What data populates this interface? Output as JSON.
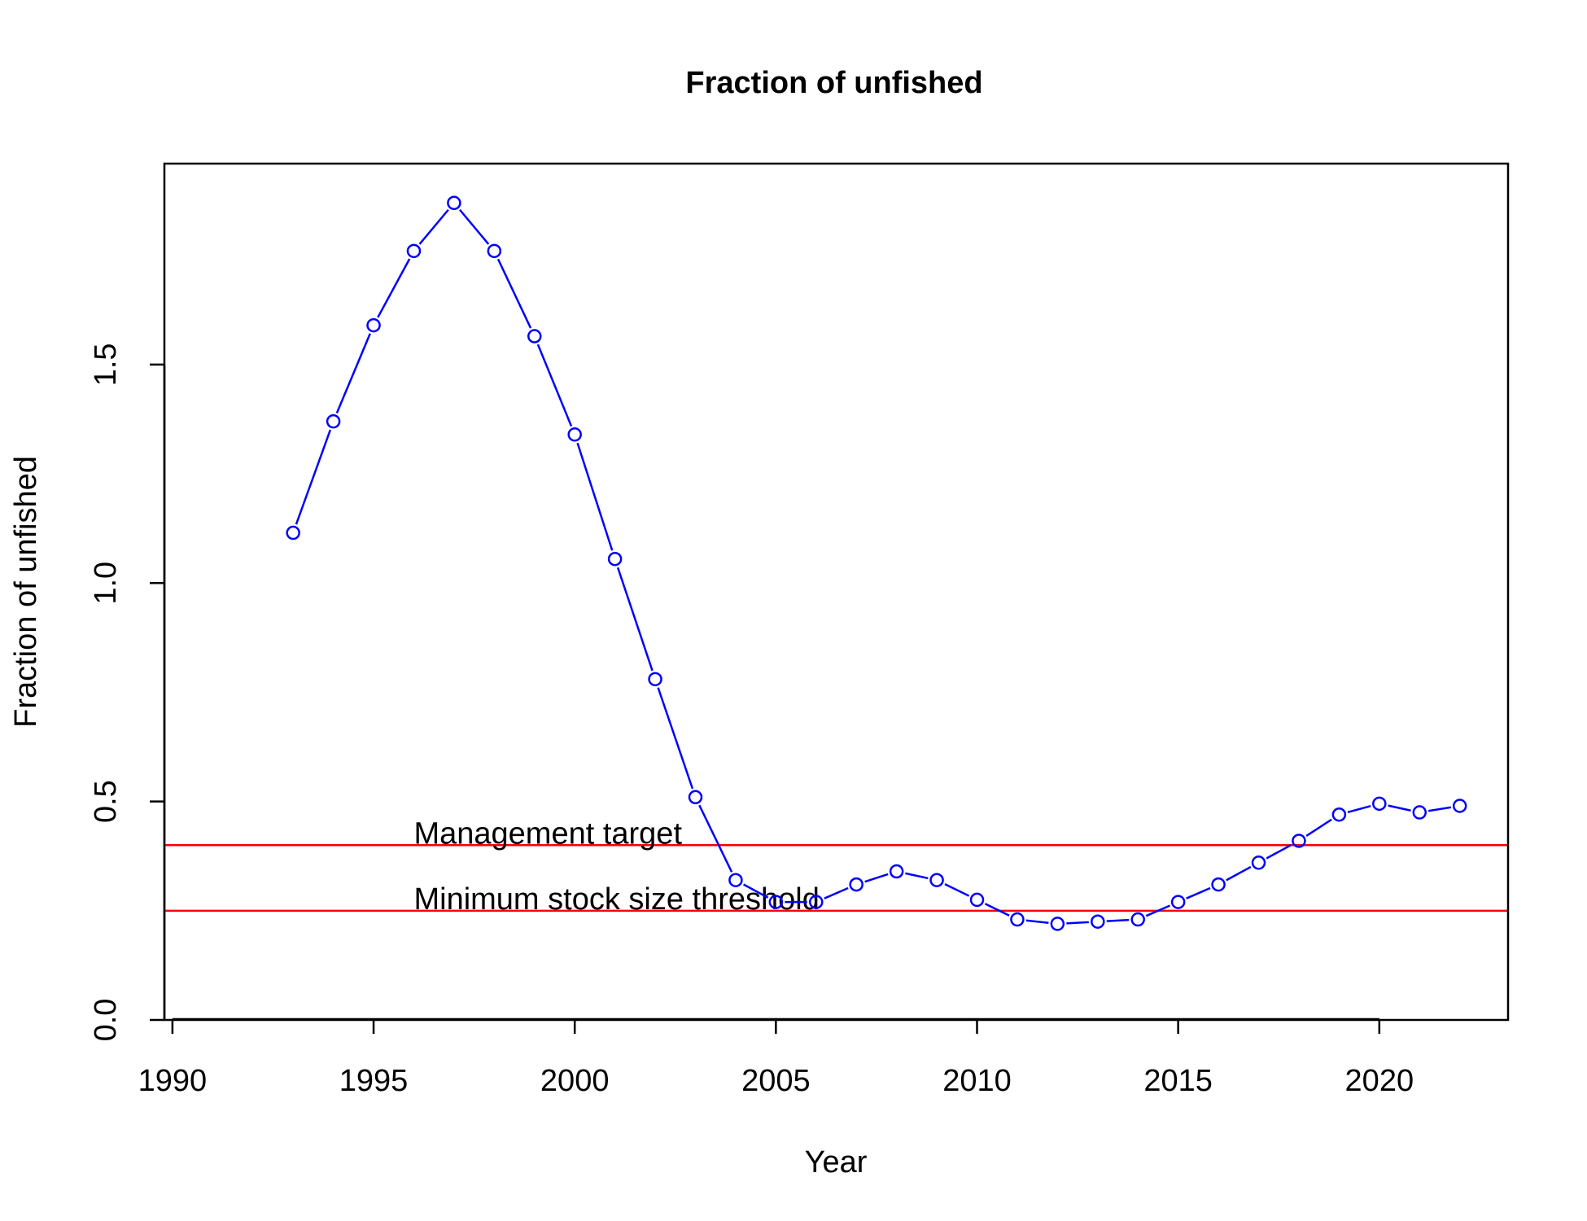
{
  "chart_data": {
    "type": "line",
    "title": "Fraction of unfished",
    "xlabel": "Year",
    "ylabel": "Fraction of unfished",
    "xlim": [
      1989.8,
      2023.2
    ],
    "ylim": [
      0,
      1.96
    ],
    "x_ticks": [
      1990,
      1995,
      2000,
      2005,
      2010,
      2015,
      2020
    ],
    "x_tick_labels": [
      "1990",
      "1995",
      "2000",
      "2005",
      "2010",
      "2015",
      "2020"
    ],
    "y_ticks": [
      0,
      0.5,
      1.0,
      1.5
    ],
    "y_tick_labels": [
      "0.0",
      "0.5",
      "1.0",
      "1.5"
    ],
    "grid": false,
    "series": [
      {
        "color": "#0000ff",
        "marker": "open-circle",
        "x": [
          1993,
          1994,
          1995,
          1996,
          1997,
          1998,
          1999,
          2000,
          2001,
          2002,
          2003,
          2004,
          2005,
          2006,
          2007,
          2008,
          2009,
          2010,
          2011,
          2012,
          2013,
          2014,
          2015,
          2016,
          2017,
          2018,
          2019,
          2020,
          2021,
          2022
        ],
        "y": [
          1.115,
          1.37,
          1.59,
          1.76,
          1.87,
          1.76,
          1.565,
          1.34,
          1.055,
          0.78,
          0.51,
          0.32,
          0.27,
          0.27,
          0.31,
          0.34,
          0.32,
          0.275,
          0.23,
          0.22,
          0.225,
          0.23,
          0.27,
          0.31,
          0.36,
          0.41,
          0.47,
          0.495,
          0.475,
          0.49
        ]
      }
    ],
    "reference_lines": [
      {
        "label": "Management target",
        "y": 0.4,
        "color": "#ff0000",
        "label_x": 1996
      },
      {
        "label": "Minimum stock size threshold",
        "y": 0.25,
        "color": "#ff0000",
        "label_x": 1996
      }
    ]
  }
}
